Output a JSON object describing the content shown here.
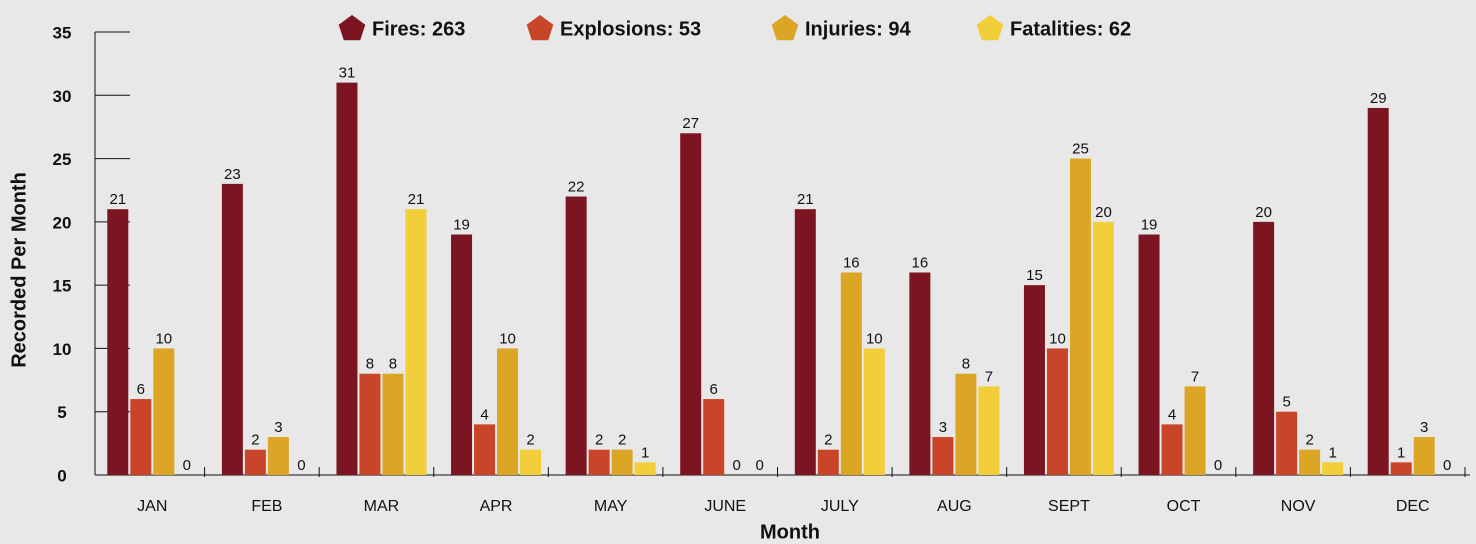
{
  "chart_data": {
    "type": "bar",
    "x_label": "Month",
    "y_label": "Recorded Per Month",
    "categories": [
      "JAN",
      "FEB",
      "MAR",
      "APR",
      "MAY",
      "JUNE",
      "JULY",
      "AUG",
      "SEPT",
      "OCT",
      "NOV",
      "DEC"
    ],
    "series": [
      {
        "name": "Fires: 263",
        "color": "#7b1522",
        "values": [
          21,
          23,
          31,
          19,
          22,
          27,
          21,
          16,
          15,
          19,
          20,
          29
        ]
      },
      {
        "name": "Explosions: 53",
        "color": "#c8452a",
        "values": [
          6,
          2,
          8,
          4,
          2,
          6,
          2,
          3,
          10,
          4,
          5,
          1
        ]
      },
      {
        "name": "Injuries: 94",
        "color": "#dba626",
        "values": [
          10,
          3,
          8,
          10,
          2,
          0,
          16,
          8,
          25,
          7,
          2,
          3
        ]
      },
      {
        "name": "Fatalities: 62",
        "color": "#f2cf3a",
        "values": [
          0,
          0,
          21,
          2,
          1,
          0,
          10,
          7,
          20,
          0,
          1,
          0
        ]
      }
    ],
    "ylim": [
      0,
      35
    ],
    "yticks": [
      0,
      5,
      10,
      15,
      20,
      25,
      30,
      35
    ],
    "legend": "top"
  }
}
